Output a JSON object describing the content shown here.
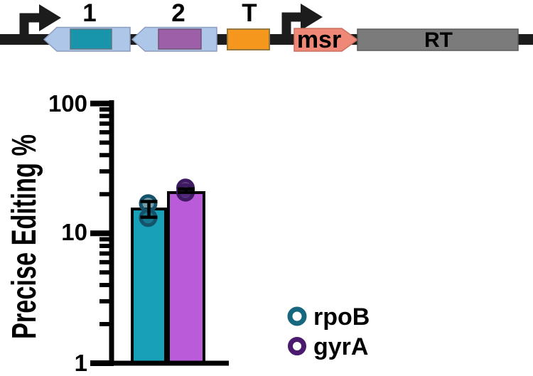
{
  "construct": {
    "labels": {
      "cassette1": "1",
      "cassette2": "2",
      "terminator": "T",
      "msr": "msr",
      "rt": "RT"
    },
    "colors": {
      "backbone": "#1C1C1C",
      "cassette_arrow": "#AEC7E8",
      "cassette1_fill": "#1895AB",
      "cassette2_fill": "#9C5FA8",
      "terminator_fill": "#F5971D",
      "msr_fill": "#F08878",
      "msr_text": "#4A5560",
      "rt_fill": "#7B7B7B",
      "rt_text": "#FFFFFF"
    }
  },
  "chart_data": {
    "type": "bar",
    "title": "",
    "xlabel": "",
    "ylabel": "Precise Editing %",
    "yscale": "log",
    "ylim": [
      1,
      100
    ],
    "yticks_major": [
      1,
      10,
      100
    ],
    "ytick_labels": [
      "1",
      "10",
      "100"
    ],
    "yticks_minor": [
      2,
      3,
      4,
      5,
      6,
      7,
      8,
      9,
      20,
      30,
      40,
      50,
      60,
      70,
      80,
      90
    ],
    "grid": false,
    "legend_position": "lower-right",
    "categories": [
      "rpoB",
      "gyrA"
    ],
    "series": [
      {
        "name": "rpoB",
        "bar_value": 15.4,
        "points": [
          17.0,
          13.2
        ],
        "error_low": 13.3,
        "error_high": 17.6,
        "bar_color": "#17A0B8",
        "point_stroke": "#14536A",
        "point_fill": "rgba(22,92,114,0.6)"
      },
      {
        "name": "gyrA",
        "bar_value": 20.6,
        "points": [
          22.4,
          20.7
        ],
        "error_low": 20.7,
        "error_high": 22.0,
        "bar_color": "#BA5BD9",
        "point_stroke": "#3E1A61",
        "point_fill": "rgba(84,43,128,0.85)"
      }
    ],
    "legend": [
      {
        "label": "rpoB",
        "ring_color": "#17687F"
      },
      {
        "label": "gyrA",
        "ring_color": "#4A1A6E"
      }
    ]
  }
}
